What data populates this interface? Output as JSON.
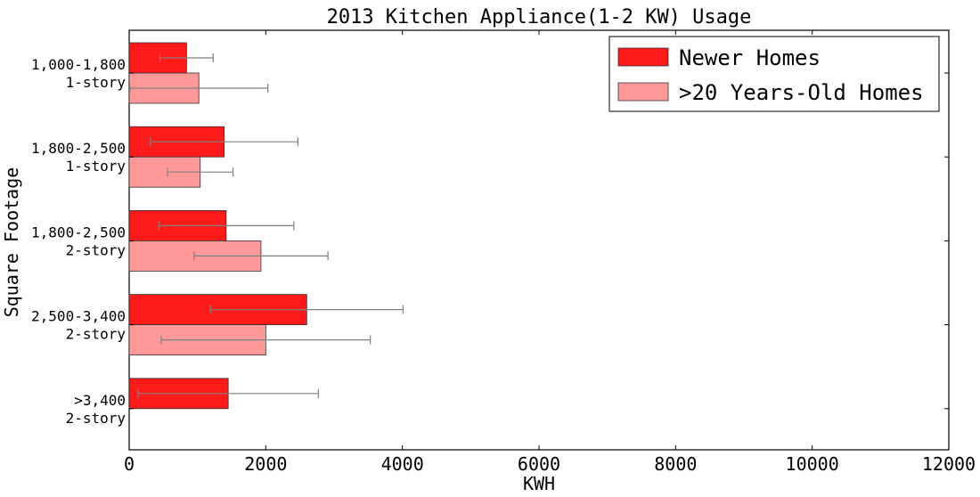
{
  "chart_data": {
    "type": "bar",
    "orientation": "horizontal",
    "title": "2013 Kitchen Appliance(1-2 KW) Usage",
    "xlabel": "KWH",
    "ylabel": "Square Footage",
    "xlim": [
      0,
      12000
    ],
    "xticks": [
      "0",
      "2000",
      "4000",
      "6000",
      "8000",
      "10000",
      "12000"
    ],
    "grid": false,
    "legend_position": "top-right",
    "categories": [
      {
        "line1": "1,000-1,800",
        "line2": "1-story"
      },
      {
        "line1": "1,800-2,500",
        "line2": "1-story"
      },
      {
        "line1": "1,800-2,500",
        "line2": "2-story"
      },
      {
        "line1": "2,500-3,400",
        "line2": "2-story"
      },
      {
        "line1": ">3,400",
        "line2": "2-story"
      }
    ],
    "series": [
      {
        "name": "Newer Homes",
        "color": "#ff1a1a",
        "values": [
          840,
          1390,
          1420,
          2600,
          1450
        ],
        "errors": [
          390,
          1080,
          990,
          1410,
          1320
        ]
      },
      {
        "name": ">20 Years-Old Homes",
        "color": "#ff9999",
        "values": [
          1020,
          1040,
          1930,
          2000,
          null
        ],
        "errors": [
          1010,
          480,
          980,
          1530,
          null
        ]
      }
    ]
  }
}
